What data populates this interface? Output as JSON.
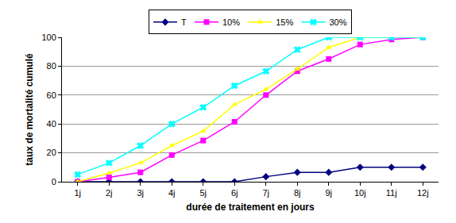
{
  "chart_data": {
    "type": "line",
    "x_label": "durée de traitement en jours",
    "y_label": "taux de mortalité cumulé",
    "categories": [
      "1j",
      "2j",
      "3j",
      "4j",
      "5j",
      "6j",
      "7j",
      "8j",
      "9j",
      "10j",
      "11j",
      "12j"
    ],
    "series": [
      {
        "name": "T",
        "color": "#000080",
        "marker": "diamond",
        "line_style": "solid",
        "values": [
          0,
          0,
          0,
          0,
          0,
          0,
          3.5,
          6.5,
          6.5,
          10,
          10,
          10
        ]
      },
      {
        "name": "10%",
        "color": "#ff00ff",
        "marker": "square",
        "line_style": "solid",
        "values": [
          0,
          3,
          6.5,
          18.5,
          28.5,
          41.5,
          60,
          76.5,
          85,
          95,
          98.5,
          100
        ]
      },
      {
        "name": "15%",
        "color": "#ffff00",
        "marker": "triangle-up",
        "line_style": "solid",
        "values": [
          0,
          6,
          13,
          25,
          35,
          53.5,
          64,
          78,
          93,
          100,
          100,
          100
        ]
      },
      {
        "name": "30%",
        "color": "#00ffff",
        "marker": "x",
        "line_style": "solid",
        "values": [
          5,
          13,
          25,
          40,
          51.5,
          66.5,
          76.5,
          91.5,
          100,
          100,
          100,
          100
        ]
      }
    ],
    "ylim": [
      0,
      100
    ],
    "yticks": [
      0,
      20,
      40,
      60,
      80,
      100
    ],
    "grid": true,
    "legend": "top"
  }
}
